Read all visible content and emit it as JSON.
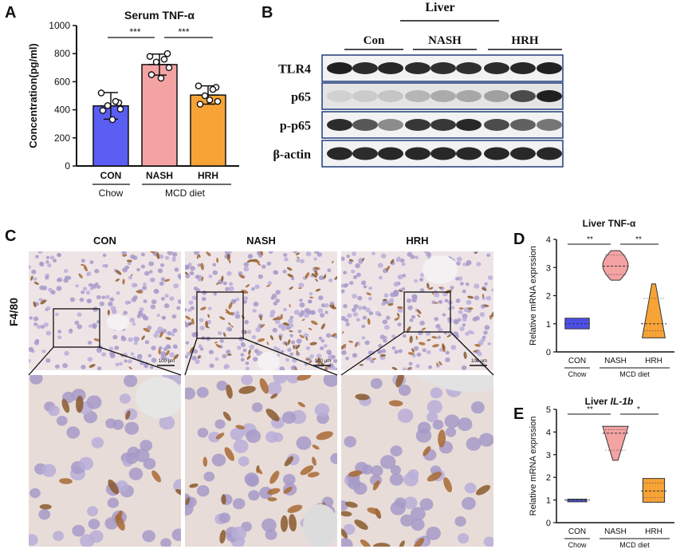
{
  "panels": {
    "A": "A",
    "B": "B",
    "C": "C",
    "D": "D",
    "E": "E"
  },
  "panel_b": {
    "liver_label": "Liver",
    "groups": [
      "Con",
      "NASH",
      "HRH"
    ],
    "rows": [
      "TLR4",
      "p65",
      "p-p65",
      "β-actin"
    ],
    "band_intensity": [
      [
        0.95,
        0.9,
        0.92,
        0.9,
        0.88,
        0.88,
        0.9,
        0.92,
        0.95
      ],
      [
        0.12,
        0.15,
        0.18,
        0.25,
        0.3,
        0.32,
        0.35,
        0.75,
        0.95
      ],
      [
        0.9,
        0.7,
        0.45,
        0.85,
        0.85,
        0.92,
        0.75,
        0.65,
        0.55
      ],
      [
        0.92,
        0.9,
        0.92,
        0.92,
        0.92,
        0.92,
        0.92,
        0.92,
        0.92
      ]
    ]
  },
  "panel_c": {
    "columns": [
      "CON",
      "NASH",
      "HRH"
    ],
    "row_label": "F4/80",
    "scale_bar": "100 μm",
    "staining_density": [
      0.25,
      0.8,
      0.5
    ]
  },
  "chart_data": [
    {
      "type": "bar",
      "panel": "A",
      "title": "Serum TNF-α",
      "ylabel": "Concentration(pg/ml)",
      "ylim": [
        0,
        1000
      ],
      "yticks": [
        0,
        200,
        400,
        600,
        800,
        1000
      ],
      "categories": [
        "CON",
        "NASH",
        "HRH"
      ],
      "values": [
        428,
        722,
        505
      ],
      "errors": [
        95,
        75,
        65
      ],
      "colors": [
        "#5a5ef2",
        "#f4a3a3",
        "#f7a335"
      ],
      "points": [
        [
          520,
          450,
          430,
          405,
          395,
          330,
          460
        ],
        [
          780,
          800,
          740,
          700,
          650,
          625,
          760
        ],
        [
          570,
          560,
          500,
          460,
          440,
          470,
          545
        ]
      ],
      "significance": [
        {
          "from": 0,
          "to": 1,
          "label": "***"
        },
        {
          "from": 1,
          "to": 2,
          "label": "***"
        }
      ],
      "group_labels": [
        {
          "label": "Chow",
          "from": 0,
          "to": 0
        },
        {
          "label": "MCD diet",
          "from": 1,
          "to": 2
        }
      ]
    },
    {
      "type": "violin",
      "panel": "D",
      "title": "Liver TNF-α",
      "ylabel": "Relative mRNA exprssion",
      "ylim": [
        0,
        4
      ],
      "yticks": [
        0,
        1,
        2,
        3,
        4
      ],
      "categories": [
        "CON",
        "NASH",
        "HRH"
      ],
      "colors": [
        "#4b4ff0",
        "#f4a3a3",
        "#f7a335"
      ],
      "series": [
        {
          "min": 0.82,
          "max": 1.2,
          "median": 1.0,
          "q1": 0.9,
          "q3": 1.12
        },
        {
          "min": 2.55,
          "max": 3.6,
          "median": 3.05,
          "q1": 2.75,
          "q3": 3.45
        },
        {
          "min": 0.5,
          "max": 2.42,
          "median": 1.0,
          "q1": 0.75,
          "q3": 1.9
        }
      ],
      "significance": [
        {
          "from": 0,
          "to": 1,
          "label": "**"
        },
        {
          "from": 1,
          "to": 2,
          "label": "**"
        }
      ],
      "group_labels": [
        {
          "label": "Chow",
          "from": 0,
          "to": 0
        },
        {
          "label": "MCD diet",
          "from": 1,
          "to": 2
        }
      ]
    },
    {
      "type": "violin",
      "panel": "E",
      "title": "Liver IL-1b",
      "title_prefix": "Liver ",
      "title_italic": "IL-1b",
      "ylabel": "Relative mRNA exprssion",
      "ylim": [
        0,
        5
      ],
      "yticks": [
        0,
        1,
        2,
        3,
        4,
        5
      ],
      "categories": [
        "CON",
        "NASH",
        "HRH"
      ],
      "colors": [
        "#4b4ff0",
        "#f4a3a3",
        "#f7a335"
      ],
      "series": [
        {
          "min": 0.92,
          "max": 1.04,
          "median": 1.0,
          "q1": 0.96,
          "q3": 1.02
        },
        {
          "min": 2.75,
          "max": 4.25,
          "median": 3.95,
          "q1": 3.2,
          "q3": 4.1
        },
        {
          "min": 0.9,
          "max": 1.95,
          "median": 1.4,
          "q1": 1.1,
          "q3": 1.75
        }
      ],
      "significance": [
        {
          "from": 0,
          "to": 1,
          "label": "**"
        },
        {
          "from": 1,
          "to": 2,
          "label": "*"
        }
      ],
      "group_labels": [
        {
          "label": "Chow",
          "from": 0,
          "to": 0
        },
        {
          "label": "MCD diet",
          "from": 1,
          "to": 2
        }
      ]
    }
  ]
}
